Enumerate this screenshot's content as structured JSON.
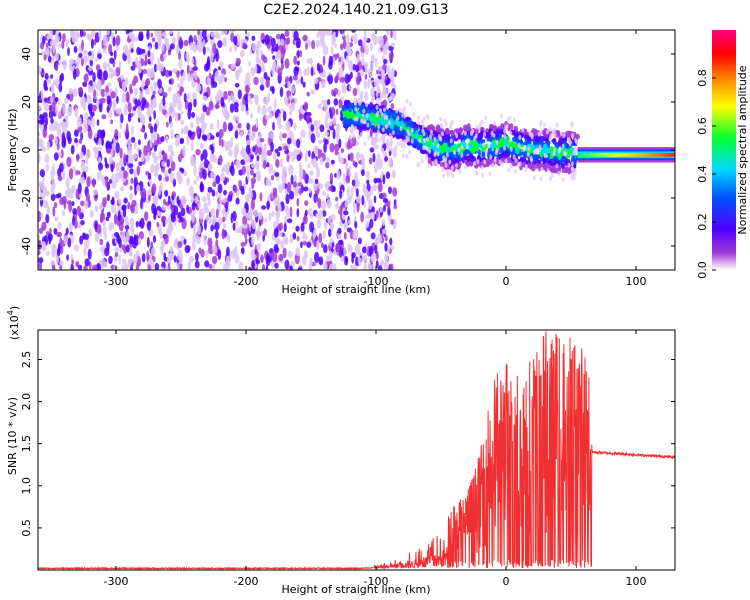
{
  "title": "C2E2.2024.140.21.09.G13",
  "chart_data": [
    {
      "type": "heatmap",
      "xlabel": "Height of straight line (km)",
      "ylabel": "Frequency (Hz)",
      "xlim": [
        -360,
        130
      ],
      "ylim": [
        -50,
        50
      ],
      "xticks": [
        -300,
        -200,
        -100,
        0,
        100
      ],
      "xtick_labels": [
        "-300",
        "-200",
        "-100",
        "0",
        "100"
      ],
      "yticks": [
        -40,
        -20,
        0,
        20,
        40
      ],
      "ytick_labels": [
        "-40",
        "-20",
        "0",
        "20",
        "40"
      ],
      "signal_ridge": {
        "x": [
          -125,
          -110,
          -100,
          -90,
          -80,
          -70,
          -60,
          -50,
          -40,
          -30,
          -20,
          -10,
          0,
          10,
          20,
          30,
          40,
          50,
          60,
          80,
          100,
          130
        ],
        "y": [
          15,
          14,
          13,
          12,
          10,
          6,
          3,
          1,
          0,
          2,
          1,
          2,
          3,
          1,
          0,
          0,
          -1,
          -1,
          -2,
          -2,
          -2,
          -2
        ]
      },
      "noise_region_x": [
        -360,
        -85
      ],
      "colorbar": {
        "label": "Normalized spectral amplitude",
        "range": [
          0,
          1
        ],
        "ticks": [
          0.0,
          0.2,
          0.4,
          0.6,
          0.8
        ],
        "tick_labels": [
          "0.0",
          "0.2",
          "0.4",
          "0.6",
          "0.8"
        ],
        "colors": [
          "#ffffff",
          "#a33bd6",
          "#5000ff",
          "#0050ff",
          "#00d8ff",
          "#00ff30",
          "#ffff00",
          "#ff8000",
          "#ff0000",
          "#ff0080"
        ]
      }
    },
    {
      "type": "line",
      "xlabel": "Height of straight line (km)",
      "ylabel": "SNR (10 * v/v)",
      "exponent_label": "(x10",
      "exponent_power": "4",
      "exponent_close": ")",
      "xlim": [
        -360,
        130
      ],
      "ylim": [
        0,
        2.85
      ],
      "xticks": [
        -300,
        -200,
        -100,
        0,
        100
      ],
      "xtick_labels": [
        "-300",
        "-200",
        "-100",
        "0",
        "100"
      ],
      "yticks": [
        0.5,
        1.0,
        1.5,
        2.0,
        2.5
      ],
      "ytick_labels": [
        "0.5",
        "1.0",
        "1.5",
        "2.0",
        "2.5"
      ],
      "color": "#f03030",
      "baseline": 0.02,
      "plateau_level": 1.36,
      "plateau_start": 66,
      "envelope": {
        "x": [
          -360,
          -110,
          -90,
          -70,
          -60,
          -50,
          -40,
          -30,
          -20,
          -10,
          0,
          10,
          20,
          30,
          40,
          50,
          60,
          65
        ],
        "y": [
          0.02,
          0.03,
          0.1,
          0.25,
          0.35,
          0.45,
          0.8,
          0.95,
          1.4,
          2.3,
          2.5,
          2.4,
          2.6,
          2.85,
          2.85,
          2.8,
          2.65,
          2.5
        ]
      }
    }
  ]
}
